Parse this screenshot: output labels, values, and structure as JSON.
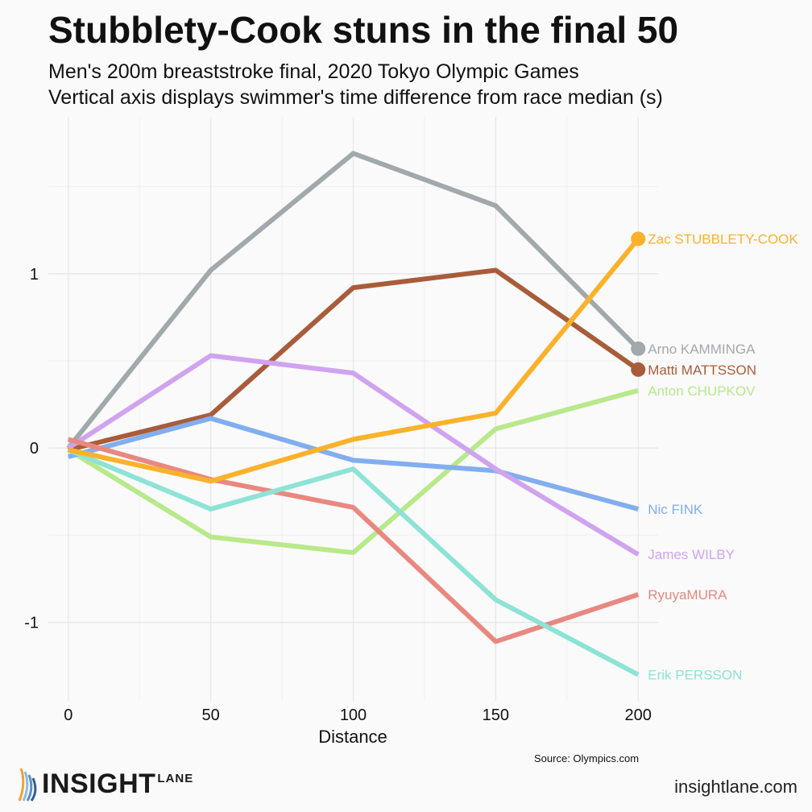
{
  "title": "Stubblety-Cook stuns in the final 50",
  "subtitle_line1": "Men's 200m breaststroke final, 2020 Tokyo Olympic Games",
  "subtitle_line2": "Vertical axis displays swimmer's time difference from race median (s)",
  "source": "Source: Olympics.com",
  "brand": {
    "word": "INSIGHT",
    "sup": "LANE",
    "site": "insightlane.com"
  },
  "chart_data": {
    "type": "line",
    "title": "Stubblety-Cook stuns in the final 50",
    "xlabel": "Distance",
    "ylabel": "",
    "x": [
      0,
      50,
      100,
      150,
      200
    ],
    "xlim": [
      -7,
      207
    ],
    "ylim": [
      -1.45,
      1.9
    ],
    "xticks": [
      0,
      50,
      100,
      150,
      200
    ],
    "yticks": [
      -1,
      0,
      1
    ],
    "ytick_labels": [
      "-1",
      "0",
      "1"
    ],
    "grid": true,
    "legend": "direct labels at line ends",
    "series": [
      {
        "name": "Arno KAMMINGA",
        "color": "#a2a9ad",
        "values": [
          0.0,
          1.02,
          1.69,
          1.39,
          0.57
        ],
        "end_point": true
      },
      {
        "name": "Matti MATTSSON",
        "color": "#a95c3a",
        "values": [
          -0.01,
          0.19,
          0.92,
          1.02,
          0.45
        ],
        "end_point": true
      },
      {
        "name": "Anton CHUPKOV",
        "color": "#b8e98a",
        "values": [
          -0.01,
          -0.51,
          -0.6,
          0.11,
          0.33
        ],
        "end_point": false
      },
      {
        "name": "Nic FINK",
        "color": "#82aeef",
        "values": [
          -0.05,
          0.17,
          -0.07,
          -0.13,
          -0.35
        ],
        "end_point": false
      },
      {
        "name": "James WILBY",
        "color": "#d0a3ef",
        "values": [
          0.0,
          0.53,
          0.43,
          -0.12,
          -0.61
        ],
        "end_point": false
      },
      {
        "name": "RyuyaMURA",
        "color": "#e98880",
        "values": [
          0.05,
          -0.18,
          -0.34,
          -1.11,
          -0.84
        ],
        "end_point": false
      },
      {
        "name": "Erik PERSSON",
        "color": "#8de3d6",
        "values": [
          -0.01,
          -0.35,
          -0.12,
          -0.87,
          -1.3
        ],
        "end_point": false
      },
      {
        "name": "Zac STUBBLETY-COOK",
        "color": "#fbb22b",
        "values": [
          -0.01,
          -0.19,
          0.05,
          0.2,
          1.2
        ],
        "end_point": true
      }
    ]
  }
}
